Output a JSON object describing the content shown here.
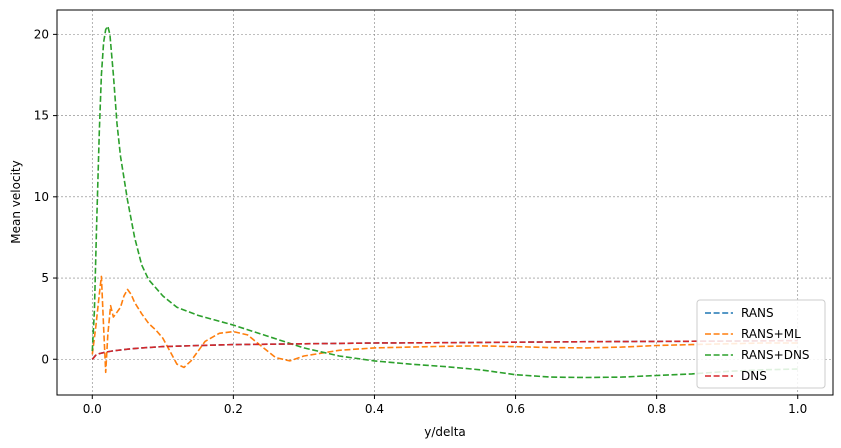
{
  "chart_data": {
    "type": "line",
    "xlabel": "y/delta",
    "ylabel": "Mean velocity",
    "xlim": [
      -0.05,
      1.05
    ],
    "ylim": [
      -2.2,
      21.5
    ],
    "xticks": [
      0.0,
      0.2,
      0.4,
      0.6,
      0.8,
      1.0
    ],
    "xtick_labels": [
      "0.0",
      "0.2",
      "0.4",
      "0.6",
      "0.8",
      "1.0"
    ],
    "yticks": [
      0,
      5,
      10,
      15,
      20
    ],
    "ytick_labels": [
      "0",
      "5",
      "10",
      "15",
      "20"
    ],
    "grid": true,
    "legend_position": "bottom-right",
    "series": [
      {
        "name": "RANS",
        "color": "#1f77b4",
        "style": "dashed",
        "x": [
          0.0,
          0.005,
          0.01,
          0.02,
          0.03,
          0.05,
          0.07,
          0.1,
          0.15,
          0.2,
          0.3,
          0.4,
          0.5,
          0.6,
          0.7,
          0.8,
          0.9,
          1.0
        ],
        "y": [
          0.0,
          0.25,
          0.35,
          0.45,
          0.52,
          0.62,
          0.7,
          0.78,
          0.85,
          0.9,
          0.95,
          1.0,
          1.02,
          1.05,
          1.08,
          1.1,
          1.12,
          1.15
        ]
      },
      {
        "name": "RANS+ML",
        "color": "#ff7f0e",
        "style": "dashed",
        "x": [
          0.0,
          0.005,
          0.01,
          0.013,
          0.016,
          0.019,
          0.022,
          0.026,
          0.03,
          0.035,
          0.04,
          0.045,
          0.05,
          0.055,
          0.06,
          0.07,
          0.08,
          0.09,
          0.1,
          0.11,
          0.12,
          0.13,
          0.14,
          0.15,
          0.16,
          0.18,
          0.2,
          0.22,
          0.24,
          0.26,
          0.28,
          0.3,
          0.35,
          0.4,
          0.45,
          0.5,
          0.55,
          0.6,
          0.65,
          0.7,
          0.75,
          0.8,
          0.85,
          0.9,
          0.95,
          1.0
        ],
        "y": [
          0.3,
          2.0,
          4.0,
          5.1,
          2.0,
          -0.8,
          1.5,
          3.3,
          2.6,
          2.9,
          3.2,
          3.9,
          4.3,
          4.0,
          3.5,
          2.8,
          2.2,
          1.8,
          1.3,
          0.5,
          -0.3,
          -0.5,
          -0.1,
          0.5,
          1.1,
          1.6,
          1.7,
          1.5,
          0.8,
          0.1,
          -0.1,
          0.2,
          0.55,
          0.7,
          0.75,
          0.8,
          0.82,
          0.78,
          0.72,
          0.7,
          0.75,
          0.85,
          0.9,
          0.95,
          1.0,
          1.0
        ]
      },
      {
        "name": "RANS+DNS",
        "color": "#2ca02c",
        "style": "dashed",
        "x": [
          0.0,
          0.003,
          0.006,
          0.01,
          0.013,
          0.016,
          0.019,
          0.022,
          0.025,
          0.03,
          0.035,
          0.04,
          0.05,
          0.06,
          0.07,
          0.08,
          0.1,
          0.12,
          0.15,
          0.2,
          0.25,
          0.3,
          0.35,
          0.4,
          0.45,
          0.5,
          0.55,
          0.6,
          0.65,
          0.7,
          0.75,
          0.8,
          0.85,
          0.9,
          0.95,
          1.0
        ],
        "y": [
          0.5,
          3.0,
          8.0,
          14.0,
          17.5,
          19.5,
          20.3,
          20.5,
          20.0,
          17.5,
          14.5,
          12.5,
          9.8,
          7.5,
          5.8,
          4.9,
          3.9,
          3.2,
          2.7,
          2.1,
          1.4,
          0.7,
          0.2,
          -0.1,
          -0.3,
          -0.45,
          -0.65,
          -0.95,
          -1.1,
          -1.12,
          -1.1,
          -1.0,
          -0.9,
          -0.75,
          -0.65,
          -0.6
        ]
      },
      {
        "name": "DNS",
        "color": "#d62728",
        "style": "dashed",
        "x": [
          0.0,
          0.005,
          0.01,
          0.02,
          0.03,
          0.05,
          0.07,
          0.1,
          0.15,
          0.2,
          0.3,
          0.4,
          0.5,
          0.6,
          0.7,
          0.8,
          0.9,
          1.0
        ],
        "y": [
          0.0,
          0.25,
          0.35,
          0.45,
          0.52,
          0.62,
          0.7,
          0.78,
          0.85,
          0.9,
          0.95,
          1.0,
          1.02,
          1.05,
          1.08,
          1.1,
          1.12,
          1.15
        ]
      }
    ]
  }
}
